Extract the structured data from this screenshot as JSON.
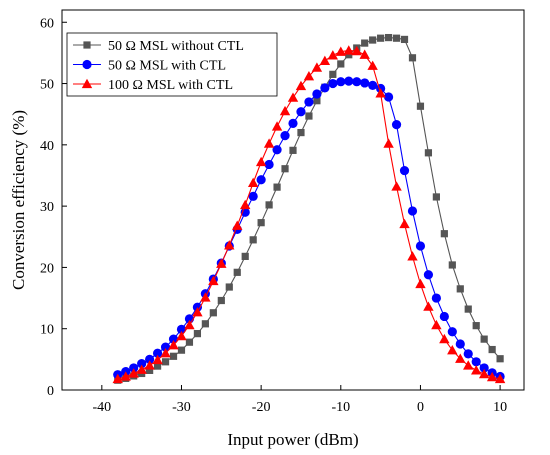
{
  "chart_data": {
    "type": "line",
    "title": "",
    "xlabel": "Input power (dBm)",
    "ylabel": "Conversion efficiency (%)",
    "xlim": [
      -45,
      13
    ],
    "ylim": [
      0,
      62
    ],
    "xticks": [
      -40,
      -30,
      -20,
      -10,
      0,
      10
    ],
    "yticks": [
      0,
      10,
      20,
      30,
      40,
      50,
      60
    ],
    "grid": false,
    "legend_position": "top-left",
    "series": [
      {
        "name": "50 Ω MSL without CTL",
        "color": "#555555",
        "marker": "square",
        "x": [
          -38,
          -37,
          -36,
          -35,
          -34,
          -33,
          -32,
          -31,
          -30,
          -29,
          -28,
          -27,
          -26,
          -25,
          -24,
          -23,
          -22,
          -21,
          -20,
          -19,
          -18,
          -17,
          -16,
          -15,
          -14,
          -13,
          -12,
          -11,
          -10,
          -9,
          -8,
          -7,
          -6,
          -5,
          -4,
          -3,
          -2,
          -1,
          0,
          1,
          2,
          3,
          4,
          5,
          6,
          7,
          8,
          9,
          10
        ],
        "y": [
          1.6,
          1.9,
          2.3,
          2.7,
          3.2,
          3.9,
          4.6,
          5.5,
          6.5,
          7.8,
          9.2,
          10.8,
          12.6,
          14.6,
          16.8,
          19.2,
          21.8,
          24.5,
          27.3,
          30.2,
          33.1,
          36.1,
          39.1,
          42.0,
          44.7,
          47.2,
          49.4,
          51.5,
          53.2,
          54.7,
          55.8,
          56.6,
          57.1,
          57.4,
          57.5,
          57.4,
          57.2,
          54.2,
          46.3,
          38.7,
          31.5,
          25.5,
          20.4,
          16.5,
          13.2,
          10.5,
          8.3,
          6.6,
          5.1
        ]
      },
      {
        "name": "50 Ω MSL with CTL",
        "color": "#0000ff",
        "marker": "circle",
        "x": [
          -38,
          -37,
          -36,
          -35,
          -34,
          -33,
          -32,
          -31,
          -30,
          -29,
          -28,
          -27,
          -26,
          -25,
          -24,
          -23,
          -22,
          -21,
          -20,
          -19,
          -18,
          -17,
          -16,
          -15,
          -14,
          -13,
          -12,
          -11,
          -10,
          -9,
          -8,
          -7,
          -6,
          -5,
          -4,
          -3,
          -2,
          -1,
          0,
          1,
          2,
          3,
          4,
          5,
          6,
          7,
          8,
          9,
          10
        ],
        "y": [
          2.5,
          3.0,
          3.6,
          4.3,
          5.0,
          6.0,
          7.0,
          8.3,
          9.9,
          11.6,
          13.5,
          15.7,
          18.1,
          20.7,
          23.5,
          26.2,
          29.0,
          31.6,
          34.3,
          36.8,
          39.2,
          41.5,
          43.5,
          45.4,
          47.0,
          48.3,
          49.3,
          50.0,
          50.3,
          50.4,
          50.3,
          50.1,
          49.7,
          49.2,
          47.8,
          43.3,
          35.8,
          29.2,
          23.5,
          18.8,
          15.0,
          12.0,
          9.5,
          7.5,
          5.9,
          4.6,
          3.6,
          2.8,
          2.2
        ]
      },
      {
        "name": "100 Ω MSL with CTL",
        "color": "#ff0000",
        "marker": "triangle",
        "x": [
          -38,
          -37,
          -36,
          -35,
          -34,
          -33,
          -32,
          -31,
          -30,
          -29,
          -28,
          -27,
          -26,
          -25,
          -24,
          -23,
          -22,
          -21,
          -20,
          -19,
          -18,
          -17,
          -16,
          -15,
          -14,
          -13,
          -12,
          -11,
          -10,
          -9,
          -8,
          -7,
          -6,
          -5,
          -4,
          -3,
          -2,
          -1,
          0,
          1,
          2,
          3,
          4,
          5,
          6,
          7,
          8,
          9,
          10
        ],
        "y": [
          1.8,
          2.2,
          2.7,
          3.3,
          4.0,
          4.9,
          6.0,
          7.3,
          8.8,
          10.6,
          12.7,
          15.1,
          17.8,
          20.6,
          23.6,
          26.8,
          30.2,
          33.8,
          37.2,
          40.2,
          43.0,
          45.5,
          47.7,
          49.6,
          51.2,
          52.6,
          53.7,
          54.6,
          55.2,
          55.4,
          55.3,
          54.7,
          52.9,
          48.4,
          40.2,
          33.2,
          27.1,
          21.8,
          17.3,
          13.6,
          10.6,
          8.3,
          6.5,
          5.1,
          4.0,
          3.2,
          2.6,
          2.1,
          1.8
        ]
      }
    ]
  }
}
